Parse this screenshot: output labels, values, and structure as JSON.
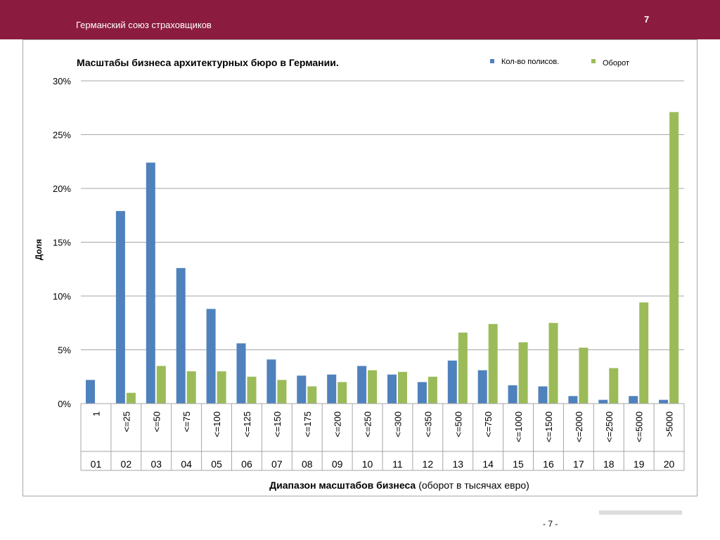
{
  "header": {
    "title": "Германский союз страховщиков",
    "page_number": "7"
  },
  "footer": {
    "page_label": "- 7 -"
  },
  "colors": {
    "header_bg": "#8b1c40",
    "series_policies": "#4f81bd",
    "series_turnover": "#9bbb59",
    "grid": "#a6a6a6"
  },
  "chart_data": {
    "type": "bar",
    "title": "Масштабы бизнеса архитектурных бюро в Германии.",
    "ylabel": "Доля",
    "xlabel_bold": "Диапазон масштабов бизнеса",
    "xlabel_normal": "(оборот в тысячах евро)",
    "ylim": [
      0,
      30
    ],
    "yticks": [
      0,
      5,
      10,
      15,
      20,
      25,
      30
    ],
    "ytick_labels": [
      "0%",
      "5%",
      "10%",
      "15%",
      "20%",
      "25%",
      "30%"
    ],
    "grid": true,
    "legend_position": "top-right",
    "categories": [
      "1",
      "<=25",
      "<=50",
      "<=75",
      "<=100",
      "<=125",
      "<=150",
      "<=175",
      "<=200",
      "<=250",
      "<=300",
      "<=350",
      "<=500",
      "<=750",
      "<=1000",
      "<=1500",
      "<=2000",
      "<=2500",
      "<=5000",
      ">5000"
    ],
    "codes": [
      "01",
      "02",
      "03",
      "04",
      "05",
      "06",
      "07",
      "08",
      "09",
      "10",
      "11",
      "12",
      "13",
      "14",
      "15",
      "16",
      "17",
      "18",
      "19",
      "20"
    ],
    "series": [
      {
        "name": "Кол-во полисов.",
        "values": [
          2.2,
          17.9,
          22.4,
          12.6,
          8.8,
          5.6,
          4.1,
          2.6,
          2.7,
          3.5,
          2.7,
          2.0,
          4.0,
          3.1,
          1.7,
          1.6,
          0.7,
          0.35,
          0.7,
          0.35
        ]
      },
      {
        "name": "Оборот",
        "values": [
          0,
          1.0,
          3.5,
          3.0,
          3.0,
          2.5,
          2.2,
          1.6,
          2.0,
          3.1,
          2.95,
          2.5,
          6.6,
          7.4,
          5.7,
          7.5,
          5.2,
          3.3,
          9.4,
          27.1
        ]
      }
    ]
  }
}
